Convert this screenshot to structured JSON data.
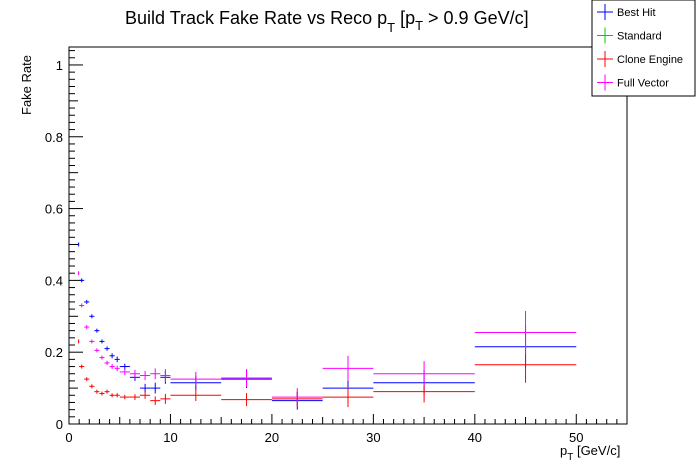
{
  "chart_data": {
    "type": "scatter",
    "title": "Build Track Fake Rate vs Reco p",
    "title_sub": "T",
    "title_suffix": " [p",
    "title_suffix_sub": "T",
    "title_suffix_end": " > 0.9 GeV/c]",
    "xlabel": "p",
    "xlabel_sub": "T",
    "xlabel_suffix": " [GeV/c]",
    "ylabel": "Fake Rate",
    "xlim": [
      0,
      55
    ],
    "ylim": [
      0,
      1.05
    ],
    "x_ticks": [
      0,
      10,
      20,
      30,
      40,
      50
    ],
    "y_ticks": [
      0,
      0.2,
      0.4,
      0.6,
      0.8,
      1
    ],
    "legend_position": "top-right",
    "grid": false,
    "series": [
      {
        "name": "Best Hit",
        "color": "#0000ff",
        "points": [
          {
            "x": 0.95,
            "xerr": 0.05,
            "y": 0.5,
            "yerr": 0.003
          },
          {
            "x": 1.25,
            "xerr": 0.25,
            "y": 0.4,
            "yerr": 0.003
          },
          {
            "x": 1.75,
            "xerr": 0.25,
            "y": 0.34,
            "yerr": 0.003
          },
          {
            "x": 2.25,
            "xerr": 0.25,
            "y": 0.3,
            "yerr": 0.004
          },
          {
            "x": 2.75,
            "xerr": 0.25,
            "y": 0.26,
            "yerr": 0.004
          },
          {
            "x": 3.25,
            "xerr": 0.25,
            "y": 0.23,
            "yerr": 0.005
          },
          {
            "x": 3.75,
            "xerr": 0.25,
            "y": 0.21,
            "yerr": 0.006
          },
          {
            "x": 4.25,
            "xerr": 0.25,
            "y": 0.19,
            "yerr": 0.007
          },
          {
            "x": 4.75,
            "xerr": 0.25,
            "y": 0.18,
            "yerr": 0.008
          },
          {
            "x": 5.5,
            "xerr": 0.5,
            "y": 0.16,
            "yerr": 0.008
          },
          {
            "x": 6.5,
            "xerr": 0.5,
            "y": 0.13,
            "yerr": 0.01
          },
          {
            "x": 7.5,
            "xerr": 0.5,
            "y": 0.1,
            "yerr": 0.012
          },
          {
            "x": 8.5,
            "xerr": 0.5,
            "y": 0.1,
            "yerr": 0.015
          },
          {
            "x": 9.5,
            "xerr": 0.5,
            "y": 0.13,
            "yerr": 0.018
          },
          {
            "x": 12.5,
            "xerr": 2.5,
            "y": 0.115,
            "yerr": 0.02
          },
          {
            "x": 17.5,
            "xerr": 2.5,
            "y": 0.125,
            "yerr": 0.025
          },
          {
            "x": 22.5,
            "xerr": 2.5,
            "y": 0.065,
            "yerr": 0.025
          },
          {
            "x": 27.5,
            "xerr": 2.5,
            "y": 0.1,
            "yerr": 0.035
          },
          {
            "x": 35,
            "xerr": 5,
            "y": 0.115,
            "yerr": 0.035
          },
          {
            "x": 45,
            "xerr": 5,
            "y": 0.215,
            "yerr": 0.06
          }
        ]
      },
      {
        "name": "Standard",
        "color": "#00cc00",
        "points": []
      },
      {
        "name": "Clone Engine",
        "color": "#ff0000",
        "points": [
          {
            "x": 0.95,
            "xerr": 0.05,
            "y": 0.23,
            "yerr": 0.003
          },
          {
            "x": 1.25,
            "xerr": 0.25,
            "y": 0.16,
            "yerr": 0.003
          },
          {
            "x": 1.75,
            "xerr": 0.25,
            "y": 0.125,
            "yerr": 0.003
          },
          {
            "x": 2.25,
            "xerr": 0.25,
            "y": 0.105,
            "yerr": 0.003
          },
          {
            "x": 2.75,
            "xerr": 0.25,
            "y": 0.09,
            "yerr": 0.004
          },
          {
            "x": 3.25,
            "xerr": 0.25,
            "y": 0.085,
            "yerr": 0.004
          },
          {
            "x": 3.75,
            "xerr": 0.25,
            "y": 0.09,
            "yerr": 0.005
          },
          {
            "x": 4.25,
            "xerr": 0.25,
            "y": 0.08,
            "yerr": 0.005
          },
          {
            "x": 4.75,
            "xerr": 0.25,
            "y": 0.08,
            "yerr": 0.006
          },
          {
            "x": 5.5,
            "xerr": 0.5,
            "y": 0.075,
            "yerr": 0.006
          },
          {
            "x": 6.5,
            "xerr": 0.5,
            "y": 0.075,
            "yerr": 0.008
          },
          {
            "x": 7.5,
            "xerr": 0.5,
            "y": 0.08,
            "yerr": 0.01
          },
          {
            "x": 8.5,
            "xerr": 0.5,
            "y": 0.065,
            "yerr": 0.012
          },
          {
            "x": 9.5,
            "xerr": 0.5,
            "y": 0.07,
            "yerr": 0.014
          },
          {
            "x": 12.5,
            "xerr": 2.5,
            "y": 0.08,
            "yerr": 0.016
          },
          {
            "x": 17.5,
            "xerr": 2.5,
            "y": 0.068,
            "yerr": 0.018
          },
          {
            "x": 22.5,
            "xerr": 2.5,
            "y": 0.07,
            "yerr": 0.02
          },
          {
            "x": 27.5,
            "xerr": 2.5,
            "y": 0.075,
            "yerr": 0.028
          },
          {
            "x": 35,
            "xerr": 5,
            "y": 0.09,
            "yerr": 0.03
          },
          {
            "x": 45,
            "xerr": 5,
            "y": 0.165,
            "yerr": 0.05
          }
        ]
      },
      {
        "name": "Full Vector",
        "color": "#ff00ff",
        "points": [
          {
            "x": 0.95,
            "xerr": 0.05,
            "y": 0.42,
            "yerr": 0.003
          },
          {
            "x": 1.25,
            "xerr": 0.25,
            "y": 0.33,
            "yerr": 0.003
          },
          {
            "x": 1.75,
            "xerr": 0.25,
            "y": 0.27,
            "yerr": 0.003
          },
          {
            "x": 2.25,
            "xerr": 0.25,
            "y": 0.23,
            "yerr": 0.004
          },
          {
            "x": 2.75,
            "xerr": 0.25,
            "y": 0.205,
            "yerr": 0.004
          },
          {
            "x": 3.25,
            "xerr": 0.25,
            "y": 0.185,
            "yerr": 0.005
          },
          {
            "x": 3.75,
            "xerr": 0.25,
            "y": 0.17,
            "yerr": 0.006
          },
          {
            "x": 4.25,
            "xerr": 0.25,
            "y": 0.16,
            "yerr": 0.007
          },
          {
            "x": 4.75,
            "xerr": 0.25,
            "y": 0.155,
            "yerr": 0.008
          },
          {
            "x": 5.5,
            "xerr": 0.5,
            "y": 0.145,
            "yerr": 0.009
          },
          {
            "x": 6.5,
            "xerr": 0.5,
            "y": 0.14,
            "yerr": 0.011
          },
          {
            "x": 7.5,
            "xerr": 0.5,
            "y": 0.135,
            "yerr": 0.013
          },
          {
            "x": 8.5,
            "xerr": 0.5,
            "y": 0.14,
            "yerr": 0.015
          },
          {
            "x": 9.5,
            "xerr": 0.5,
            "y": 0.135,
            "yerr": 0.018
          },
          {
            "x": 12.5,
            "xerr": 2.5,
            "y": 0.125,
            "yerr": 0.02
          },
          {
            "x": 17.5,
            "xerr": 2.5,
            "y": 0.128,
            "yerr": 0.025
          },
          {
            "x": 22.5,
            "xerr": 2.5,
            "y": 0.075,
            "yerr": 0.025
          },
          {
            "x": 27.5,
            "xerr": 2.5,
            "y": 0.155,
            "yerr": 0.035
          },
          {
            "x": 35,
            "xerr": 5,
            "y": 0.14,
            "yerr": 0.035
          },
          {
            "x": 45,
            "xerr": 5,
            "y": 0.255,
            "yerr": 0.06
          }
        ]
      }
    ]
  }
}
